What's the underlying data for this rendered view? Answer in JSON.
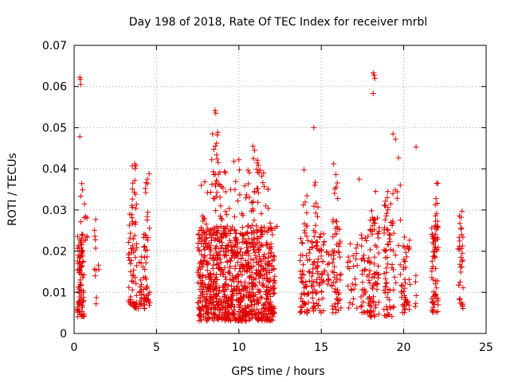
{
  "chart_data": {
    "type": "scatter",
    "title": "Day 198 of 2018, Rate Of TEC Index for receiver mrbl",
    "xlabel": "GPS time / hours",
    "ylabel": "ROTI / TECUs",
    "xlim": [
      0,
      25
    ],
    "ylim": [
      0,
      0.07
    ],
    "xticks": [
      0,
      5,
      10,
      15,
      20,
      25
    ],
    "yticks": [
      0,
      0.01,
      0.02,
      0.03,
      0.04,
      0.05,
      0.06,
      0.07
    ],
    "xtick_labels": [
      "0",
      "5",
      "10",
      "15",
      "20",
      "25"
    ],
    "ytick_labels": [
      "0",
      "0.01",
      "0.02",
      "0.03",
      "0.04",
      "0.05",
      "0.06",
      "0.07"
    ],
    "grid": true,
    "marker": "+",
    "series": [
      {
        "name": "ROTI",
        "color": "#e00000",
        "clusters": [
          {
            "x": [
              0.2,
              0.6
            ],
            "y": [
              0.004,
              0.024
            ],
            "n": 90
          },
          {
            "x": [
              0.4,
              0.8
            ],
            "y": [
              0.022,
              0.037
            ],
            "n": 14
          },
          {
            "x": [
              1.2,
              1.5
            ],
            "y": [
              0.006,
              0.028
            ],
            "n": 12
          },
          {
            "x": [
              3.3,
              3.8
            ],
            "y": [
              0.006,
              0.03
            ],
            "n": 60
          },
          {
            "x": [
              3.5,
              3.8
            ],
            "y": [
              0.03,
              0.042
            ],
            "n": 14
          },
          {
            "x": [
              3.9,
              4.3
            ],
            "y": [
              0.006,
              0.02
            ],
            "n": 25
          },
          {
            "x": [
              4.2,
              4.6
            ],
            "y": [
              0.006,
              0.025
            ],
            "n": 35
          },
          {
            "x": [
              4.3,
              4.6
            ],
            "y": [
              0.025,
              0.039
            ],
            "n": 10
          },
          {
            "x": [
              7.5,
              12.2
            ],
            "y": [
              0.003,
              0.026
            ],
            "n": 900
          },
          {
            "x": [
              7.7,
              12.0
            ],
            "y": [
              0.022,
              0.04
            ],
            "n": 90
          },
          {
            "x": [
              8.2,
              8.8
            ],
            "y": [
              0.036,
              0.049
            ],
            "n": 14
          },
          {
            "x": [
              10.6,
              11.2
            ],
            "y": [
              0.03,
              0.045
            ],
            "n": 14
          },
          {
            "x": [
              13.7,
              14.3
            ],
            "y": [
              0.005,
              0.025
            ],
            "n": 55
          },
          {
            "x": [
              13.9,
              14.2
            ],
            "y": [
              0.025,
              0.034
            ],
            "n": 8
          },
          {
            "x": [
              14.4,
              15.2
            ],
            "y": [
              0.005,
              0.025
            ],
            "n": 80
          },
          {
            "x": [
              14.5,
              14.8
            ],
            "y": [
              0.025,
              0.037
            ],
            "n": 8
          },
          {
            "x": [
              15.3,
              15.6
            ],
            "y": [
              0.01,
              0.02
            ],
            "n": 10
          },
          {
            "x": [
              15.6,
              16.2
            ],
            "y": [
              0.005,
              0.026
            ],
            "n": 55
          },
          {
            "x": [
              15.7,
              16.0
            ],
            "y": [
              0.026,
              0.041
            ],
            "n": 10
          },
          {
            "x": [
              16.6,
              17.2
            ],
            "y": [
              0.006,
              0.022
            ],
            "n": 25
          },
          {
            "x": [
              17.4,
              18.0
            ],
            "y": [
              0.005,
              0.025
            ],
            "n": 45
          },
          {
            "x": [
              17.9,
              18.5
            ],
            "y": [
              0.004,
              0.03
            ],
            "n": 55
          },
          {
            "x": [
              18.2,
              18.6
            ],
            "y": [
              0.02,
              0.028
            ],
            "n": 8
          },
          {
            "x": [
              18.8,
              19.4
            ],
            "y": [
              0.004,
              0.035
            ],
            "n": 70
          },
          {
            "x": [
              19.4,
              19.8
            ],
            "y": [
              0.01,
              0.045
            ],
            "n": 12
          },
          {
            "x": [
              19.8,
              20.4
            ],
            "y": [
              0.005,
              0.024
            ],
            "n": 45
          },
          {
            "x": [
              20.6,
              20.8
            ],
            "y": [
              0.006,
              0.015
            ],
            "n": 5
          },
          {
            "x": [
              21.7,
              22.1
            ],
            "y": [
              0.005,
              0.026
            ],
            "n": 65
          },
          {
            "x": [
              21.9,
              22.1
            ],
            "y": [
              0.026,
              0.037
            ],
            "n": 10
          },
          {
            "x": [
              23.3,
              23.6
            ],
            "y": [
              0.006,
              0.03
            ],
            "n": 35
          }
        ],
        "points": [
          [
            0.35,
            0.0622
          ],
          [
            0.38,
            0.0617
          ],
          [
            0.4,
            0.0605
          ],
          [
            0.35,
            0.0478
          ],
          [
            8.55,
            0.0542
          ],
          [
            8.6,
            0.0535
          ],
          [
            8.65,
            0.0462
          ],
          [
            8.4,
            0.0485
          ],
          [
            10.85,
            0.0455
          ],
          [
            10.95,
            0.0445
          ],
          [
            10.0,
            0.0422
          ],
          [
            9.7,
            0.0418
          ],
          [
            14.55,
            0.05
          ],
          [
            18.15,
            0.0633
          ],
          [
            18.2,
            0.0628
          ],
          [
            18.25,
            0.062
          ],
          [
            18.15,
            0.0583
          ],
          [
            19.35,
            0.0485
          ],
          [
            20.75,
            0.0453
          ],
          [
            19.5,
            0.0472
          ],
          [
            13.95,
            0.0398
          ],
          [
            15.75,
            0.0412
          ],
          [
            17.3,
            0.0375
          ],
          [
            18.3,
            0.0345
          ],
          [
            22.0,
            0.0365
          ],
          [
            11.9,
            0.0268
          ],
          [
            7.9,
            0.0278
          ],
          [
            12.3,
            0.026
          ]
        ]
      }
    ]
  }
}
